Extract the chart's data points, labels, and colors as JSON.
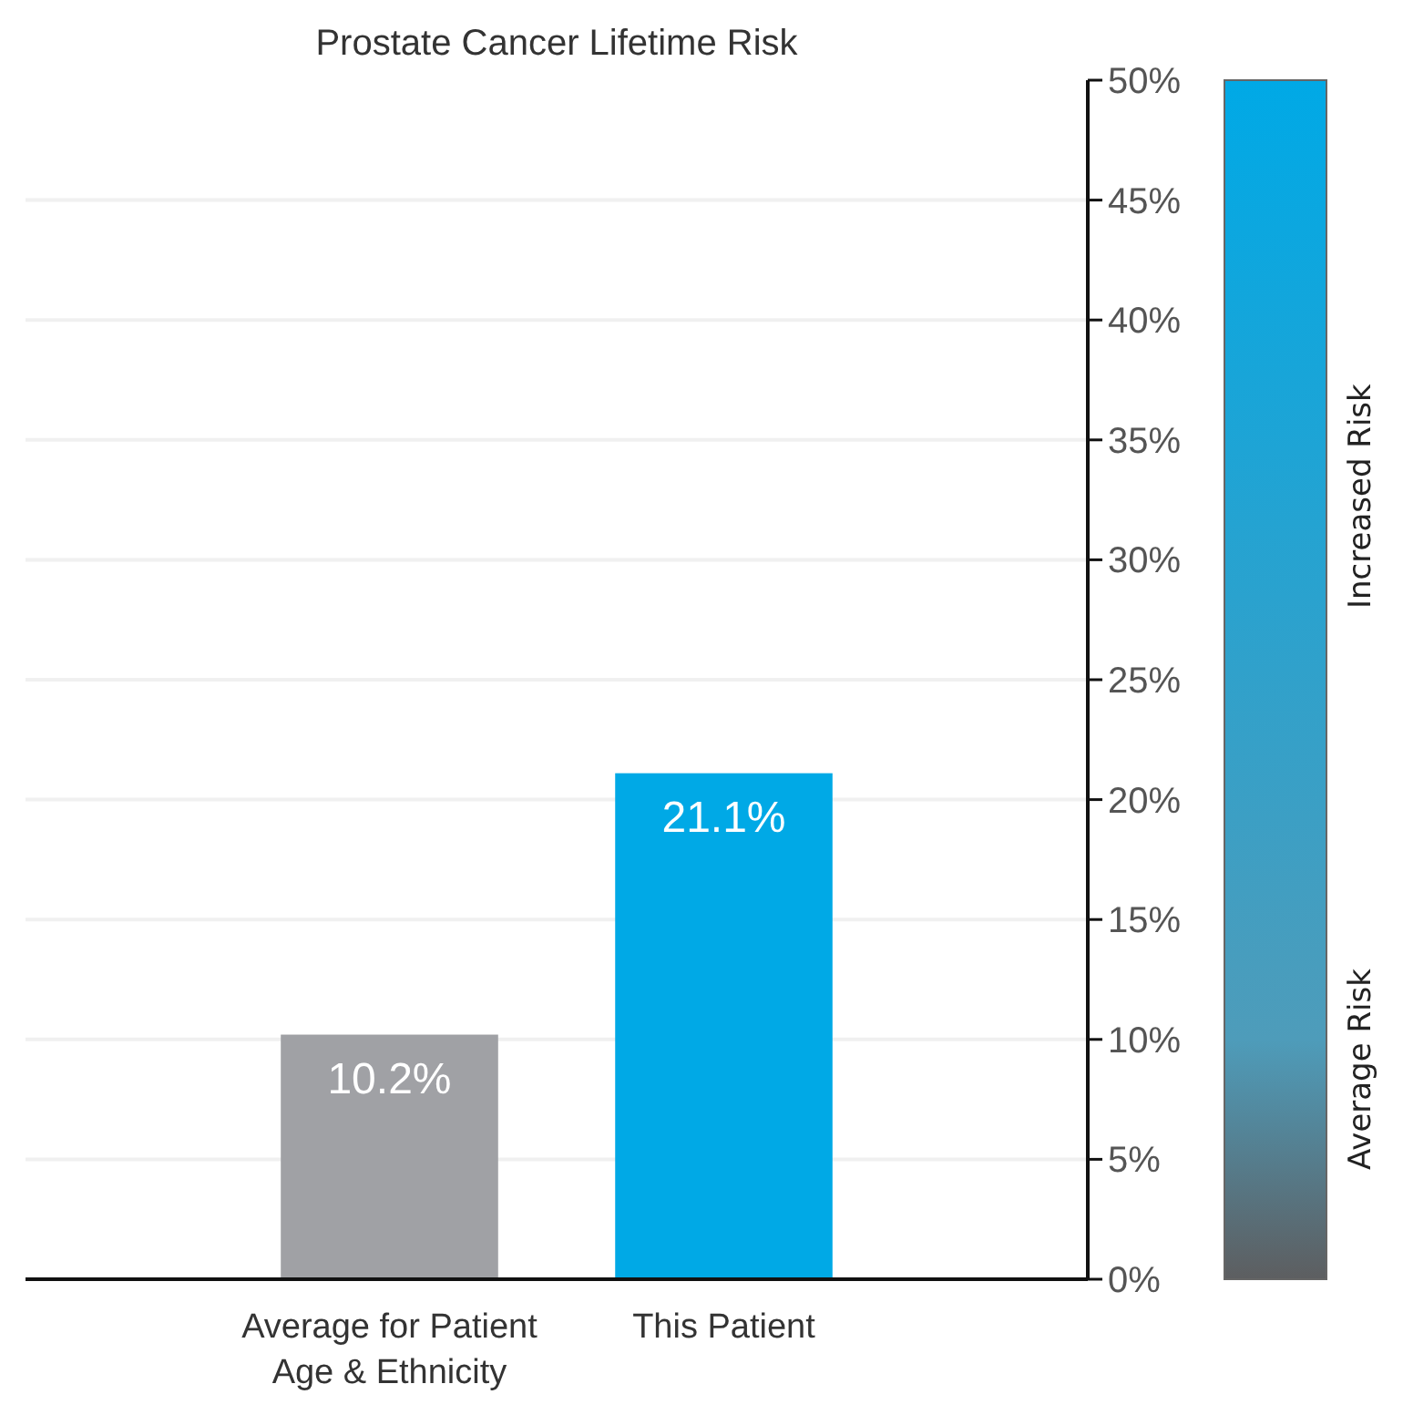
{
  "chart_data": {
    "type": "bar",
    "title": "Prostate Cancer Lifetime Risk",
    "categories": [
      "Average for Patient Age & Ethnicity",
      "This Patient"
    ],
    "values": [
      10.2,
      21.1
    ],
    "colors": [
      "#a0a1a5",
      "#00a9e6"
    ],
    "value_labels": [
      "10.2%",
      "21.1%"
    ],
    "ylim": [
      0,
      50
    ],
    "yticks": [
      {
        "value": 0,
        "label": "0%"
      },
      {
        "value": 5,
        "label": "5%"
      },
      {
        "value": 10,
        "label": "10%"
      },
      {
        "value": 15,
        "label": "15%"
      },
      {
        "value": 20,
        "label": "20%"
      },
      {
        "value": 25,
        "label": "25%"
      },
      {
        "value": 30,
        "label": "30%"
      },
      {
        "value": 35,
        "label": "35%"
      },
      {
        "value": 40,
        "label": "40%"
      },
      {
        "value": 45,
        "label": "45%"
      },
      {
        "value": 50,
        "label": "50%"
      }
    ],
    "grid": true,
    "annotations": [
      "Increased Risk",
      "Average Risk"
    ]
  }
}
